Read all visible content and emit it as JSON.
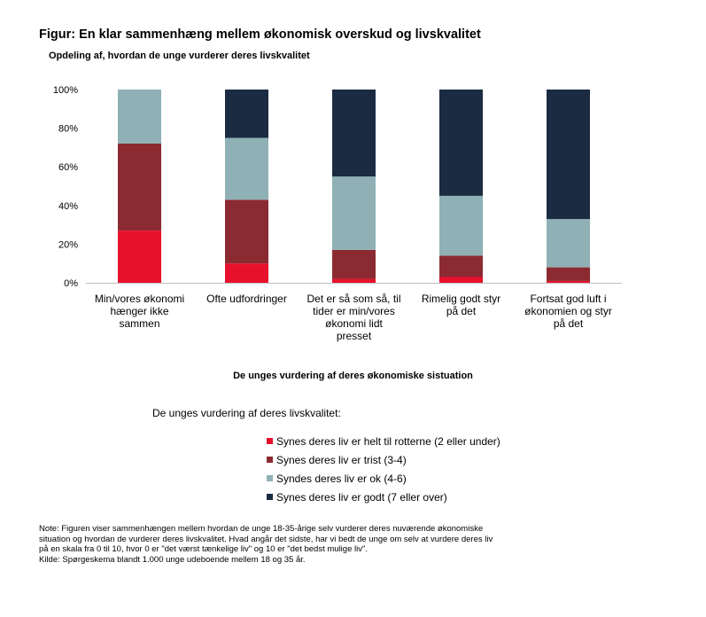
{
  "header": {
    "title": "Figur: En klar sammenhæng mellem økonomisk overskud og livskvalitet",
    "subtitle": "Opdeling af, hvordan de unge vurderer deres livskvalitet"
  },
  "chart_data": {
    "type": "bar",
    "stacked": true,
    "categories": [
      [
        "Min/vores økonomi",
        "hænger ikke",
        "sammen"
      ],
      [
        "Ofte udfordringer"
      ],
      [
        "Det er så som så, til",
        "tider er min/vores",
        "økonomi lidt",
        "presset"
      ],
      [
        "Rimelig godt styr",
        "på det"
      ],
      [
        "Fortsat god luft i",
        "økonomien og styr",
        "på det"
      ]
    ],
    "series": [
      {
        "name": "Synes deres liv er helt til rotterne (2 eller under)",
        "color": "#e8112d",
        "values": [
          27,
          10,
          2,
          3,
          1
        ]
      },
      {
        "name": "Synes deres liv er trist (3-4)",
        "color": "#8c2a32",
        "values": [
          45,
          33,
          15,
          11,
          7
        ]
      },
      {
        "name": "Syndes deres liv er ok (4-6)",
        "color": "#8fb1b5",
        "values": [
          28,
          32,
          38,
          31,
          25
        ]
      },
      {
        "name": "Synes deres liv er godt (7 eller over)",
        "color": "#1b2b42",
        "values": [
          0,
          25,
          45,
          55,
          67
        ]
      }
    ],
    "ylim": [
      0,
      100
    ],
    "yticks": [
      "0%",
      "20%",
      "40%",
      "60%",
      "80%",
      "100%"
    ],
    "xlabel": "De unges vurdering af deres økonomiske sistuation",
    "legend_title": "De unges vurdering af deres livskvalitet:",
    "legend_position": "bottom"
  },
  "note": {
    "lines": [
      "Note: Figuren viser sammenhængen mellem hvordan de unge 18-35-årige selv vurderer deres nuværende økonomiske",
      "situation og hvordan de vurderer deres livskvalitet. Hvad angår det sidste, har vi bedt de unge om selv at vurdere deres liv",
      "på en skala fra 0 til 10, hvor 0 er \"det værst tænkelige liv\" og 10 er \"det bedst mulige liv\".",
      "Kilde: Spørgeskema blandt 1.000 unge udeboende mellem 18 og 35 år."
    ]
  }
}
